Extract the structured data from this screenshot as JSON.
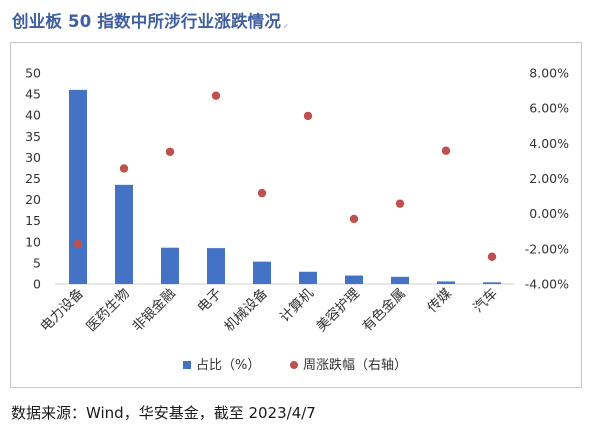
{
  "page": {
    "title": "创业板 50 指数中所涉行业涨跌情况",
    "title_mark": "⸝",
    "source": "数据来源：Wind，华安基金，截至 2023/4/7"
  },
  "chart_data": {
    "type": "bar",
    "categories": [
      "电力设备",
      "医药生物",
      "非银金融",
      "电子",
      "机械设备",
      "计算机",
      "美容护理",
      "有色金属",
      "传媒",
      "汽车"
    ],
    "series": [
      {
        "name": "占比（%）",
        "type": "bar",
        "axis": "left",
        "color": "#4472c4",
        "values": [
          46.0,
          23.5,
          8.6,
          8.5,
          5.3,
          2.9,
          2.0,
          1.7,
          0.6,
          0.4
        ]
      },
      {
        "name": "周涨跌幅（右轴）",
        "type": "scatter",
        "axis": "right",
        "color": "#c0504d",
        "values": [
          -0.0173,
          0.0257,
          0.0352,
          0.0671,
          0.0117,
          0.0556,
          -0.003,
          0.0057,
          0.0358,
          -0.0245
        ]
      }
    ],
    "y_left": {
      "min": 0,
      "max": 50,
      "step": 5
    },
    "y_right": {
      "min": -0.04,
      "max": 0.08,
      "step": 0.02,
      "format": "percent2"
    },
    "grid": false,
    "legend": "bottom"
  }
}
